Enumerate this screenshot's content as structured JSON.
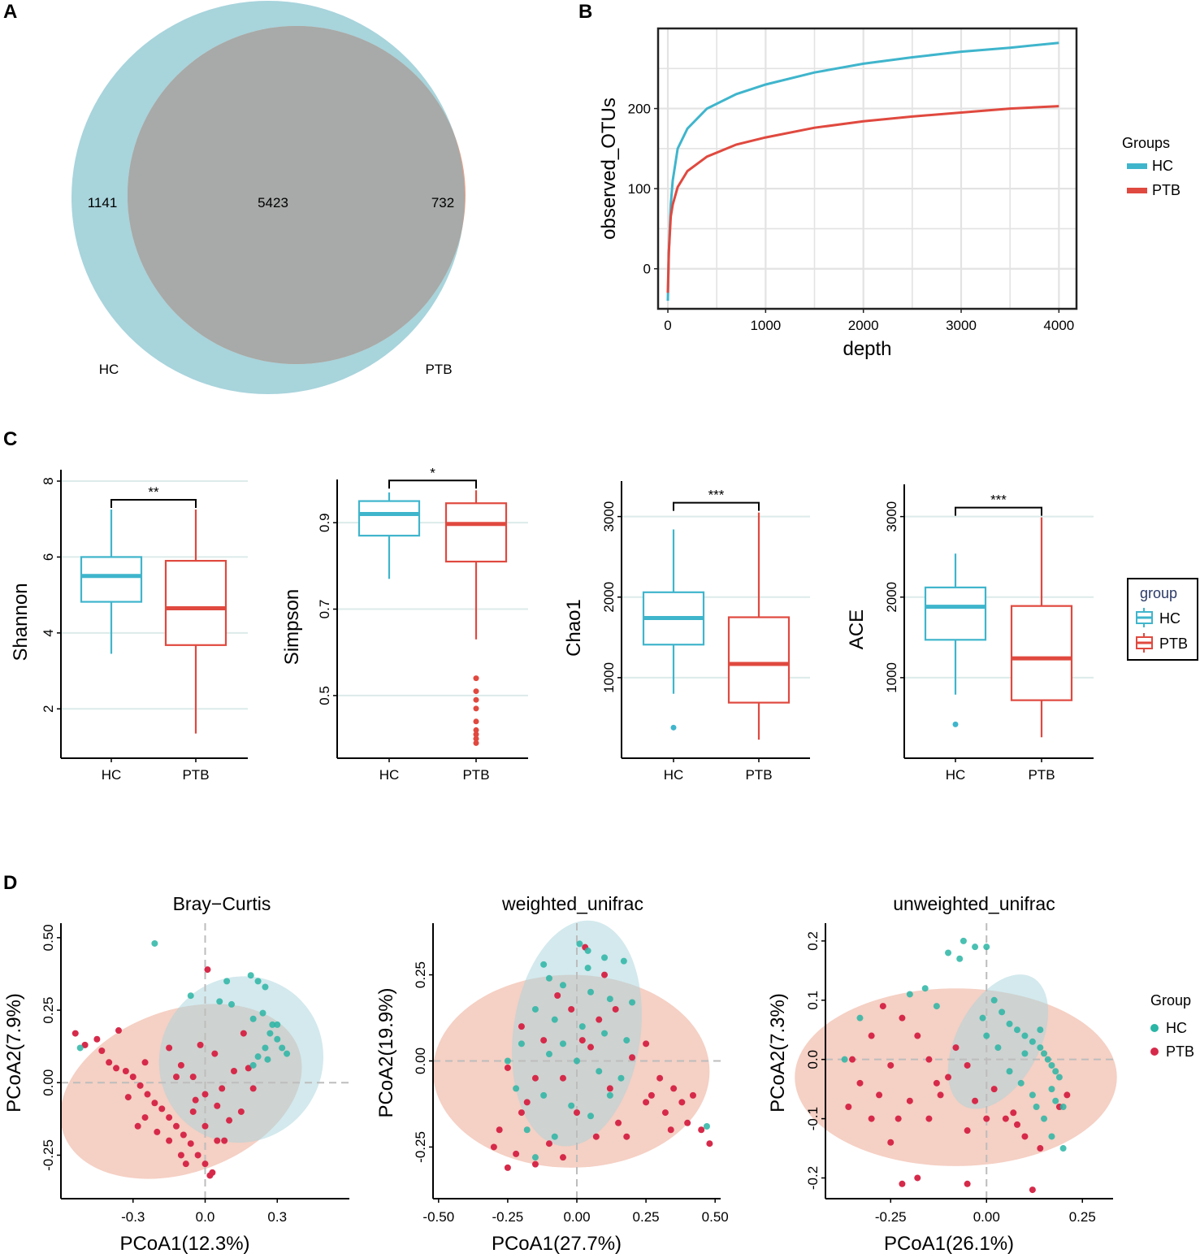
{
  "panels": {
    "a": "A",
    "b": "B",
    "c": "C",
    "d": "D"
  },
  "colors": {
    "hc_line": "#3fb5cc",
    "ptb_line": "#e0493f",
    "hc_venn": "#a8d4dc",
    "ptb_venn": "#eba28a",
    "overlap": "#a7aaa8",
    "hc_point": "#2ab5a5",
    "ptb_point": "#d62a4a",
    "grid": "#e3e3e3",
    "box_grid": "#dcebea"
  },
  "venn": {
    "hc_only": "1141",
    "shared": "5423",
    "ptb_only": "732",
    "hc_label": "HC",
    "ptb_label": "PTB"
  },
  "chart_data": [
    {
      "id": "B",
      "type": "line",
      "xlabel": "depth",
      "ylabel": "observed_OTUs",
      "xlim": [
        -100,
        4180
      ],
      "ylim": [
        -50,
        300
      ],
      "xticks": [
        "0",
        "1000",
        "2000",
        "3000",
        "4000"
      ],
      "yticks": [
        "0",
        "100",
        "200"
      ],
      "legend_title": "Groups",
      "series": [
        {
          "name": "HC",
          "x": [
            0,
            10,
            30,
            50,
            100,
            200,
            400,
            700,
            1000,
            1500,
            2000,
            2500,
            3000,
            3500,
            4000
          ],
          "y": [
            -40,
            20,
            80,
            110,
            150,
            175,
            200,
            218,
            230,
            245,
            256,
            264,
            271,
            276,
            282
          ]
        },
        {
          "name": "PTB",
          "x": [
            0,
            10,
            30,
            50,
            100,
            200,
            400,
            700,
            1000,
            1500,
            2000,
            2500,
            3000,
            3500,
            4000
          ],
          "y": [
            -30,
            20,
            65,
            80,
            102,
            122,
            140,
            155,
            164,
            176,
            184,
            190,
            195,
            200,
            203
          ]
        }
      ]
    },
    {
      "id": "C1",
      "type": "box",
      "ylabel": "Shannon",
      "categories": [
        "HC",
        "PTB"
      ],
      "yticks": [
        "2",
        "4",
        "6",
        "8"
      ],
      "ylim": [
        0.7,
        8.3
      ],
      "significance": "**",
      "boxes": [
        {
          "name": "HC",
          "whislo": 3.45,
          "q1": 4.82,
          "med": 5.5,
          "q3": 6.0,
          "whishi": 7.25,
          "fliers": []
        },
        {
          "name": "PTB",
          "whislo": 1.35,
          "q1": 3.68,
          "med": 4.65,
          "q3": 5.9,
          "whishi": 7.25,
          "fliers": []
        }
      ]
    },
    {
      "id": "C2",
      "type": "box",
      "ylabel": "Simpson",
      "categories": [
        "HC",
        "PTB"
      ],
      "yticks": [
        "0.5",
        "0.7",
        "0.9"
      ],
      "ylim": [
        0.355,
        1.0
      ],
      "significance": "*",
      "boxes": [
        {
          "name": "HC",
          "whislo": 0.77,
          "q1": 0.87,
          "med": 0.92,
          "q3": 0.95,
          "whishi": 0.97,
          "fliers": []
        },
        {
          "name": "PTB",
          "whislo": 0.63,
          "q1": 0.81,
          "med": 0.897,
          "q3": 0.945,
          "whishi": 0.975,
          "fliers": [
            0.54,
            0.51,
            0.49,
            0.47,
            0.44,
            0.42,
            0.41,
            0.4,
            0.39
          ]
        }
      ]
    },
    {
      "id": "C3",
      "type": "box",
      "ylabel": "Chao1",
      "categories": [
        "HC",
        "PTB"
      ],
      "yticks": [
        "1000",
        "2000",
        "3000"
      ],
      "ylim": [
        0,
        3440
      ],
      "significance": "***",
      "boxes": [
        {
          "name": "HC",
          "whislo": 800,
          "q1": 1410,
          "med": 1740,
          "q3": 2060,
          "whishi": 2840,
          "fliers": [
            380
          ]
        },
        {
          "name": "PTB",
          "whislo": 230,
          "q1": 690,
          "med": 1170,
          "q3": 1750,
          "whishi": 3050,
          "fliers": []
        }
      ]
    },
    {
      "id": "C4",
      "type": "box",
      "ylabel": "ACE",
      "categories": [
        "HC",
        "PTB"
      ],
      "yticks": [
        "1000",
        "2000",
        "3000"
      ],
      "ylim": [
        0,
        3400
      ],
      "significance": "***",
      "boxes": [
        {
          "name": "HC",
          "whislo": 790,
          "q1": 1470,
          "med": 1880,
          "q3": 2120,
          "whishi": 2540,
          "fliers": [
            420
          ]
        },
        {
          "name": "PTB",
          "whislo": 260,
          "q1": 720,
          "med": 1240,
          "q3": 1890,
          "whishi": 2990,
          "fliers": []
        }
      ]
    },
    {
      "id": "D1",
      "type": "scatter",
      "title": "Bray−Curtis",
      "xlabel": "PCoA1(12.3%)",
      "ylabel": "PCoA2(7.9%)",
      "xlim": [
        -0.6,
        0.6
      ],
      "ylim": [
        -0.4,
        0.55
      ],
      "xticks": [
        -0.3,
        0.0,
        0.3
      ],
      "xtick_labels": [
        "-0.3",
        "0.0",
        "0.3"
      ],
      "yticks": [
        -0.25,
        0.0,
        0.25,
        0.5
      ],
      "ytick_labels": [
        "-0.25",
        "0.00",
        "0.25",
        "0.50"
      ],
      "ellipses": [
        {
          "group": "HC",
          "cx": 0.15,
          "cy": 0.08,
          "rx": 0.35,
          "ry": 0.28,
          "angle": -55
        },
        {
          "group": "PTB",
          "cx": -0.1,
          "cy": -0.03,
          "rx": 0.52,
          "ry": 0.28,
          "angle": -20
        }
      ],
      "HC": [
        [
          -0.21,
          0.48
        ],
        [
          0.09,
          0.35
        ],
        [
          0.19,
          0.37
        ],
        [
          0.22,
          0.35
        ],
        [
          0.25,
          0.33
        ],
        [
          0.06,
          0.28
        ],
        [
          0.11,
          0.27
        ],
        [
          0.2,
          0.22
        ],
        [
          0.24,
          0.24
        ],
        [
          0.28,
          0.2
        ],
        [
          0.3,
          0.2
        ],
        [
          0.27,
          0.17
        ],
        [
          0.3,
          0.15
        ],
        [
          0.25,
          0.12
        ],
        [
          0.32,
          0.12
        ],
        [
          0.34,
          0.1
        ],
        [
          0.22,
          0.09
        ],
        [
          0.2,
          0.06
        ],
        [
          -0.06,
          0.3
        ],
        [
          -0.52,
          0.12
        ],
        [
          0.26,
          0.08
        ]
      ],
      "PTB": [
        [
          -0.54,
          0.17
        ],
        [
          -0.5,
          0.13
        ],
        [
          -0.45,
          0.15
        ],
        [
          -0.43,
          0.11
        ],
        [
          -0.4,
          0.07
        ],
        [
          -0.37,
          0.05
        ],
        [
          -0.33,
          0.04
        ],
        [
          -0.3,
          0.02
        ],
        [
          -0.27,
          -0.01
        ],
        [
          -0.24,
          -0.04
        ],
        [
          -0.21,
          -0.07
        ],
        [
          -0.18,
          -0.09
        ],
        [
          -0.15,
          -0.12
        ],
        [
          -0.12,
          -0.15
        ],
        [
          -0.09,
          -0.18
        ],
        [
          -0.06,
          -0.21
        ],
        [
          -0.03,
          -0.25
        ],
        [
          0.0,
          -0.28
        ],
        [
          0.03,
          -0.31
        ],
        [
          -0.15,
          0.12
        ],
        [
          -0.1,
          0.06
        ],
        [
          -0.05,
          0.02
        ],
        [
          0.0,
          -0.04
        ],
        [
          0.05,
          -0.08
        ],
        [
          0.1,
          -0.13
        ],
        [
          -0.2,
          -0.17
        ],
        [
          -0.1,
          -0.25
        ],
        [
          0.05,
          -0.2
        ],
        [
          0.0,
          -0.15
        ],
        [
          -0.05,
          -0.1
        ],
        [
          0.01,
          0.39
        ],
        [
          -0.36,
          0.18
        ],
        [
          -0.25,
          0.07
        ],
        [
          0.12,
          0.04
        ],
        [
          0.15,
          -0.1
        ],
        [
          0.08,
          -0.2
        ],
        [
          0.02,
          -0.32
        ],
        [
          -0.08,
          -0.28
        ],
        [
          -0.15,
          -0.2
        ],
        [
          -0.25,
          -0.12
        ],
        [
          0.2,
          -0.02
        ],
        [
          0.18,
          0.05
        ],
        [
          -0.02,
          0.13
        ],
        [
          0.04,
          0.1
        ],
        [
          -0.28,
          -0.15
        ],
        [
          -0.32,
          -0.05
        ],
        [
          -0.12,
          0.02
        ],
        [
          0.07,
          -0.02
        ],
        [
          0.16,
          0.17
        ],
        [
          -0.04,
          -0.06
        ]
      ]
    },
    {
      "id": "D2",
      "type": "scatter",
      "title": "weighted_unifrac",
      "xlabel": "PCoA1(27.7%)",
      "ylabel": "PCoA2(19.9%)",
      "xlim": [
        -0.52,
        0.52
      ],
      "ylim": [
        -0.4,
        0.4
      ],
      "xticks": [
        -0.5,
        -0.25,
        0.0,
        0.25,
        0.5
      ],
      "xtick_labels": [
        "-0.50",
        "-0.25",
        "0.00",
        "0.25",
        "0.50"
      ],
      "yticks": [
        -0.25,
        0.0,
        0.25
      ],
      "ytick_labels": [
        "-0.25",
        "0.00",
        "0.25"
      ],
      "ellipses": [
        {
          "group": "HC",
          "cx": 0.0,
          "cy": 0.08,
          "rx": 0.23,
          "ry": 0.33,
          "angle": 8
        },
        {
          "group": "PTB",
          "cx": -0.02,
          "cy": -0.03,
          "rx": 0.5,
          "ry": 0.28,
          "angle": 0
        }
      ],
      "HC": [
        [
          0.01,
          0.34
        ],
        [
          0.04,
          0.32
        ],
        [
          0.1,
          0.3
        ],
        [
          0.17,
          0.29
        ],
        [
          -0.1,
          0.24
        ],
        [
          -0.05,
          0.22
        ],
        [
          0.05,
          0.2
        ],
        [
          0.12,
          0.18
        ],
        [
          0.2,
          0.17
        ],
        [
          -0.15,
          0.15
        ],
        [
          -0.08,
          0.12
        ],
        [
          0.02,
          0.1
        ],
        [
          0.1,
          0.08
        ],
        [
          0.18,
          0.06
        ],
        [
          -0.2,
          0.05
        ],
        [
          -0.1,
          0.02
        ],
        [
          0.0,
          0.0
        ],
        [
          0.08,
          -0.03
        ],
        [
          0.16,
          -0.05
        ],
        [
          -0.22,
          -0.08
        ],
        [
          -0.12,
          -0.1
        ],
        [
          -0.02,
          -0.13
        ],
        [
          0.05,
          -0.16
        ],
        [
          -0.18,
          -0.2
        ],
        [
          -0.08,
          -0.22
        ],
        [
          -0.15,
          -0.28
        ],
        [
          0.47,
          -0.19
        ],
        [
          -0.12,
          0.28
        ],
        [
          0.04,
          0.27
        ],
        [
          -0.05,
          0.05
        ],
        [
          0.12,
          -0.1
        ],
        [
          -0.25,
          0.0
        ]
      ],
      "PTB": [
        [
          0.03,
          0.33
        ],
        [
          0.1,
          0.25
        ],
        [
          -0.07,
          0.19
        ],
        [
          0.14,
          0.15
        ],
        [
          -0.2,
          0.1
        ],
        [
          -0.12,
          0.06
        ],
        [
          0.05,
          0.04
        ],
        [
          0.2,
          0.01
        ],
        [
          -0.25,
          -0.02
        ],
        [
          -0.05,
          -0.05
        ],
        [
          0.12,
          -0.08
        ],
        [
          -0.18,
          -0.12
        ],
        [
          0.0,
          -0.15
        ],
        [
          0.25,
          -0.12
        ],
        [
          -0.28,
          -0.2
        ],
        [
          -0.1,
          -0.24
        ],
        [
          0.07,
          -0.22
        ],
        [
          -0.22,
          -0.27
        ],
        [
          -0.15,
          -0.3
        ],
        [
          -0.25,
          -0.31
        ],
        [
          0.3,
          -0.05
        ],
        [
          0.35,
          -0.08
        ],
        [
          0.38,
          -0.12
        ],
        [
          0.32,
          -0.15
        ],
        [
          0.4,
          -0.18
        ],
        [
          0.45,
          -0.2
        ],
        [
          0.48,
          -0.24
        ],
        [
          0.34,
          -0.2
        ],
        [
          0.42,
          -0.1
        ],
        [
          0.27,
          -0.1
        ],
        [
          -0.02,
          0.15
        ],
        [
          0.08,
          0.12
        ],
        [
          -0.15,
          -0.05
        ],
        [
          0.15,
          -0.18
        ],
        [
          -0.05,
          -0.28
        ],
        [
          0.02,
          0.06
        ],
        [
          0.18,
          -0.22
        ],
        [
          -0.3,
          -0.25
        ],
        [
          -0.2,
          -0.15
        ],
        [
          0.25,
          0.05
        ]
      ]
    },
    {
      "id": "D3",
      "type": "scatter",
      "title": "unweighted_unifrac",
      "xlabel": "PCoA1(26.1%)",
      "ylabel": "PCoA2(7.3%)",
      "xlim": [
        -0.42,
        0.33
      ],
      "ylim": [
        -0.235,
        0.23
      ],
      "xticks": [
        -0.25,
        0.0,
        0.25
      ],
      "xtick_labels": [
        "-0.25",
        "0.00",
        "0.25"
      ],
      "yticks": [
        -0.2,
        -0.1,
        0.0,
        0.1,
        0.2
      ],
      "ytick_labels": [
        "-0.2",
        "-0.1",
        "0.0",
        "0.1",
        "0.2"
      ],
      "ellipses": [
        {
          "group": "HC",
          "cx": 0.03,
          "cy": 0.03,
          "rx": 0.19,
          "ry": 0.07,
          "angle": -62
        },
        {
          "group": "PTB",
          "cx": -0.08,
          "cy": -0.03,
          "rx": 0.42,
          "ry": 0.15,
          "angle": 0
        }
      ],
      "HC": [
        [
          -0.06,
          0.2
        ],
        [
          -0.03,
          0.19
        ],
        [
          0.0,
          0.19
        ],
        [
          -0.1,
          0.18
        ],
        [
          -0.07,
          0.17
        ],
        [
          -0.16,
          0.12
        ],
        [
          -0.2,
          0.11
        ],
        [
          -0.13,
          0.09
        ],
        [
          -0.33,
          0.07
        ],
        [
          0.02,
          0.1
        ],
        [
          0.04,
          0.08
        ],
        [
          0.06,
          0.06
        ],
        [
          0.08,
          0.05
        ],
        [
          0.1,
          0.04
        ],
        [
          0.12,
          0.03
        ],
        [
          0.14,
          0.02
        ],
        [
          0.15,
          0.01
        ],
        [
          0.16,
          0.0
        ],
        [
          0.17,
          -0.01
        ],
        [
          0.18,
          -0.02
        ],
        [
          0.19,
          -0.03
        ],
        [
          0.17,
          -0.05
        ],
        [
          0.18,
          -0.07
        ],
        [
          0.2,
          -0.08
        ],
        [
          0.15,
          -0.1
        ],
        [
          0.17,
          -0.13
        ],
        [
          0.2,
          -0.15
        ],
        [
          0.0,
          0.04
        ],
        [
          0.03,
          0.02
        ],
        [
          0.06,
          -0.02
        ],
        [
          0.09,
          -0.04
        ],
        [
          0.12,
          -0.06
        ],
        [
          0.13,
          -0.08
        ],
        [
          -0.37,
          0.0
        ],
        [
          0.14,
          0.05
        ],
        [
          0.1,
          0.01
        ],
        [
          -0.01,
          0.07
        ]
      ],
      "PTB": [
        [
          -0.27,
          0.09
        ],
        [
          -0.22,
          0.07
        ],
        [
          -0.3,
          0.04
        ],
        [
          -0.35,
          0.0
        ],
        [
          -0.25,
          -0.01
        ],
        [
          -0.15,
          0.0
        ],
        [
          -0.1,
          -0.03
        ],
        [
          -0.05,
          -0.01
        ],
        [
          0.02,
          -0.05
        ],
        [
          -0.33,
          -0.04
        ],
        [
          -0.28,
          -0.06
        ],
        [
          -0.2,
          -0.07
        ],
        [
          -0.12,
          -0.06
        ],
        [
          -0.03,
          -0.07
        ],
        [
          0.07,
          -0.09
        ],
        [
          -0.36,
          -0.08
        ],
        [
          -0.3,
          -0.1
        ],
        [
          -0.23,
          -0.1
        ],
        [
          -0.15,
          -0.1
        ],
        [
          -0.05,
          -0.12
        ],
        [
          0.1,
          -0.13
        ],
        [
          -0.25,
          -0.14
        ],
        [
          0.14,
          -0.15
        ],
        [
          -0.22,
          -0.21
        ],
        [
          -0.18,
          -0.2
        ],
        [
          -0.05,
          -0.21
        ],
        [
          0.12,
          -0.22
        ],
        [
          0.19,
          -0.08
        ],
        [
          0.21,
          -0.06
        ],
        [
          -0.18,
          0.04
        ],
        [
          0.05,
          -0.1
        ],
        [
          -0.08,
          0.02
        ],
        [
          -0.13,
          -0.04
        ],
        [
          0.0,
          -0.1
        ],
        [
          0.08,
          -0.11
        ]
      ]
    }
  ],
  "legends": {
    "b": {
      "title": "Groups",
      "items": [
        "HC",
        "PTB"
      ]
    },
    "c": {
      "title": "group",
      "items": [
        "HC",
        "PTB"
      ]
    },
    "d": {
      "title": "Group",
      "items": [
        "HC",
        "PTB"
      ]
    }
  }
}
